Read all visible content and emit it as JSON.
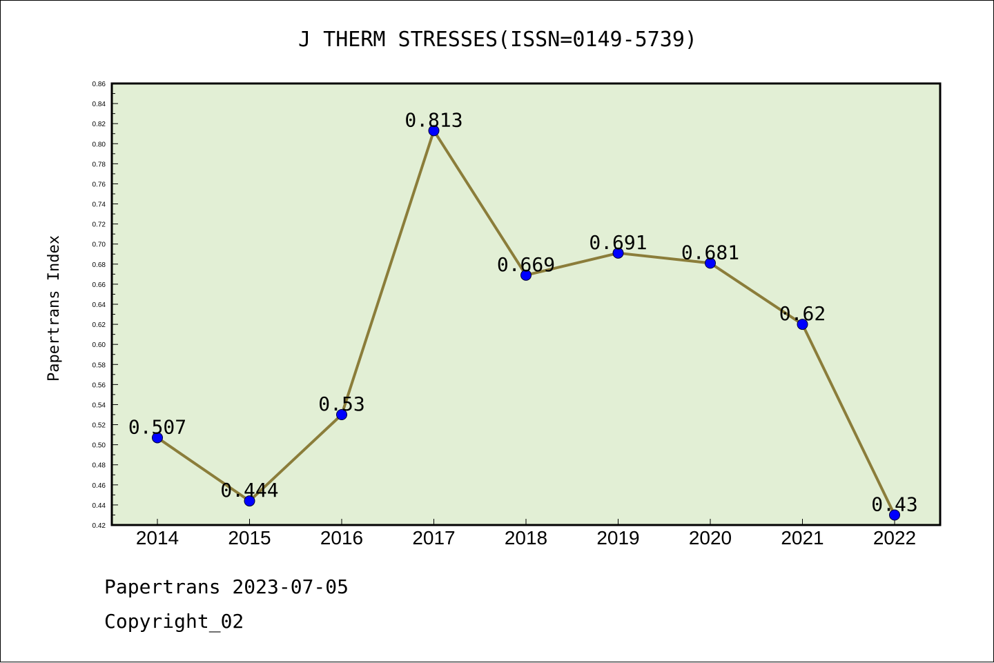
{
  "footer": {
    "line1": "Papertrans 2023-07-05",
    "line2": "Copyright_02"
  },
  "colors": {
    "plot_bg": "#e2efd5",
    "line": "#8b7d3a",
    "marker": "#0000ff",
    "axis": "#000000"
  },
  "chart_data": {
    "type": "line",
    "title": "J THERM STRESSES(ISSN=0149-5739)",
    "xlabel": "",
    "ylabel": "Papertrans Index",
    "categories": [
      "2014",
      "2015",
      "2016",
      "2017",
      "2018",
      "2019",
      "2020",
      "2021",
      "2022"
    ],
    "series": [
      {
        "values": [
          0.507,
          0.444,
          0.53,
          0.813,
          0.669,
          0.691,
          0.681,
          0.62,
          0.43
        ],
        "labels": [
          "0.507",
          "0.444",
          "0.53",
          "0.813",
          "0.669",
          "0.691",
          "0.681",
          "0.62",
          "0.43"
        ]
      }
    ],
    "ylim": [
      0.42,
      0.86
    ],
    "yticks": [
      "0.42",
      "0.44",
      "0.46",
      "0.48",
      "0.50",
      "0.52",
      "0.54",
      "0.56",
      "0.58",
      "0.60",
      "0.62",
      "0.64",
      "0.66",
      "0.68",
      "0.70",
      "0.72",
      "0.74",
      "0.76",
      "0.78",
      "0.80",
      "0.82",
      "0.84",
      "0.86"
    ],
    "grid": false,
    "legend": "none"
  }
}
